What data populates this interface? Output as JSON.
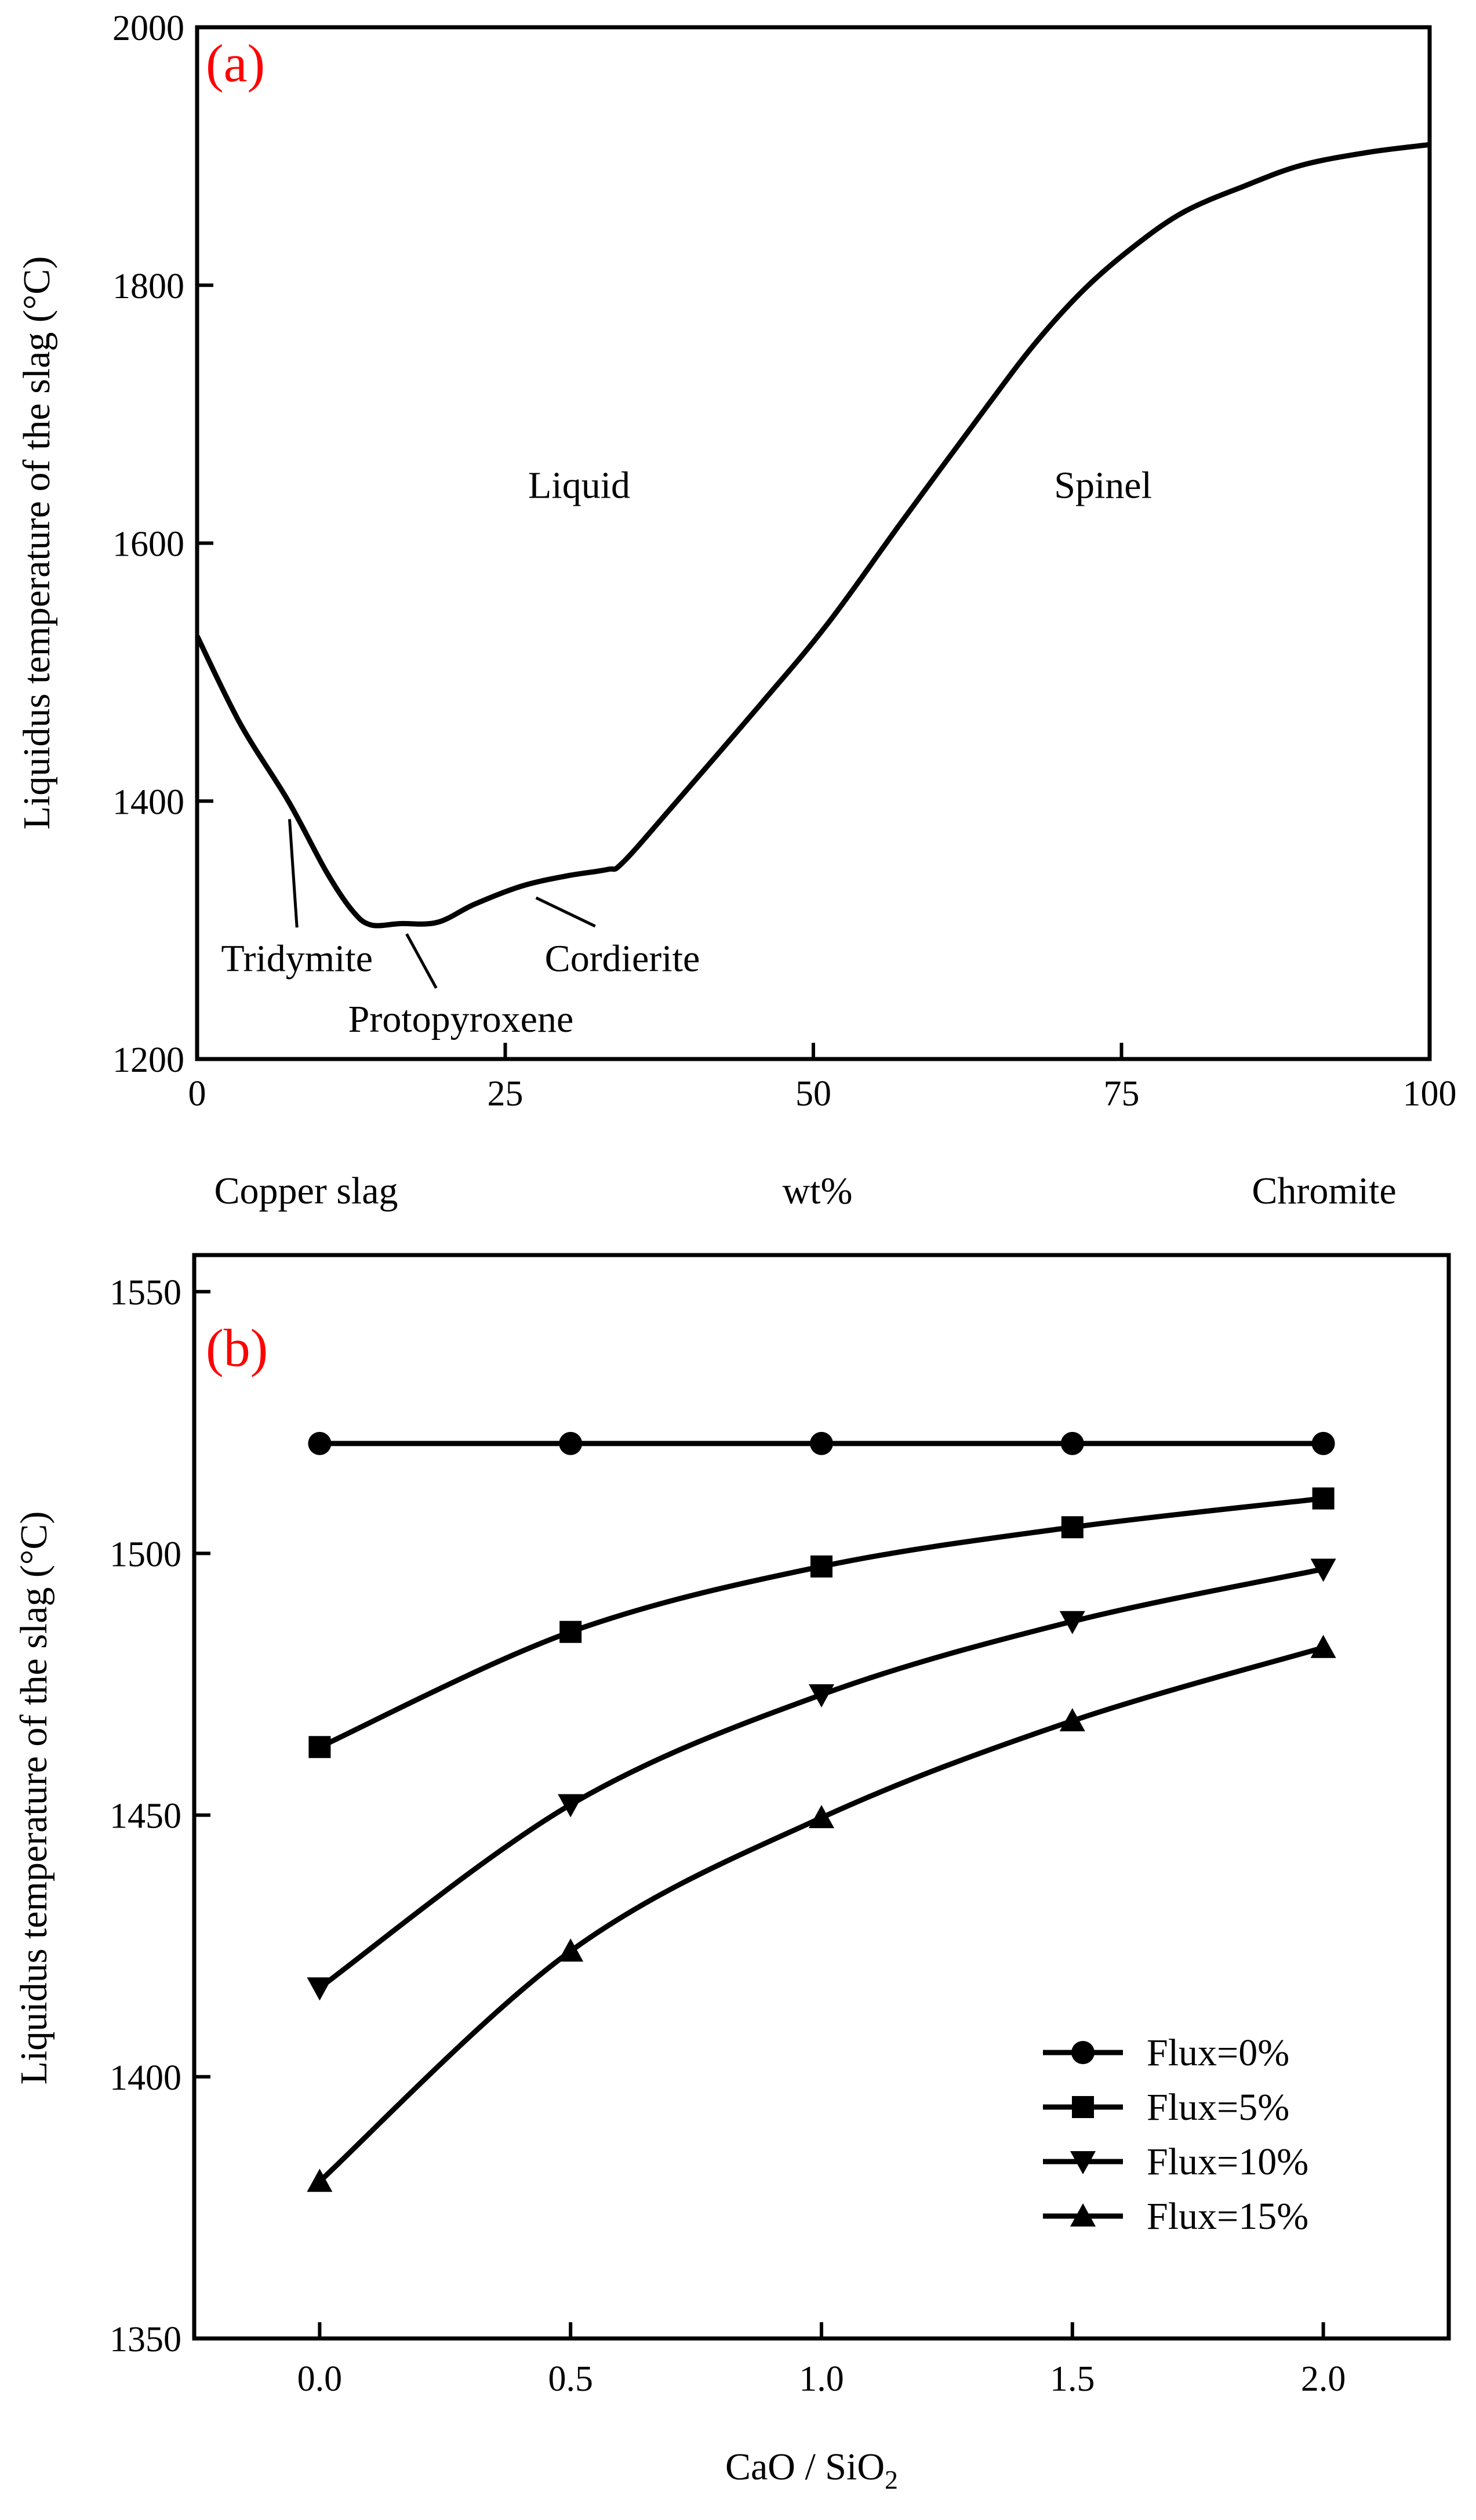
{
  "chart_data": [
    {
      "type": "line",
      "panel_label": "(a)",
      "panel_label_color": "#ff0000",
      "ylabel": "Liquidus temperature of the slag (°C)",
      "xlabel": "wt%",
      "x_end_labels": {
        "left": "Copper slag",
        "right": "Chromite"
      },
      "xlim": [
        0,
        100
      ],
      "ylim": [
        1200,
        2000
      ],
      "xticks": [
        0,
        25,
        50,
        75,
        100
      ],
      "yticks": [
        1200,
        1400,
        1600,
        1800,
        2000
      ],
      "grid": false,
      "series": [
        {
          "x": [
            0,
            3.5,
            7.4,
            10.5,
            12.6,
            14.1,
            16.5,
            19.5,
            22.5,
            26.3,
            30,
            33.3,
            34.5,
            38.4,
            45.8,
            51.2,
            57.2,
            64,
            68,
            72,
            76,
            80.1,
            85,
            89.6,
            95,
            100
          ],
          "y": [
            1528,
            1460,
            1400,
            1345,
            1315,
            1304,
            1305,
            1306,
            1320,
            1334,
            1342,
            1347,
            1352,
            1394,
            1476,
            1538,
            1617,
            1705,
            1755,
            1797,
            1830,
            1857,
            1877,
            1893,
            1903,
            1909
          ]
        }
      ],
      "annotations": [
        {
          "text": "Liquid",
          "x": 31,
          "y": 1645
        },
        {
          "text": "Spinel",
          "x": 73.5,
          "y": 1645
        },
        {
          "text": "Tridymite",
          "x": 8.1,
          "y": 1278,
          "leader": [
            [
              7.5,
              1386
            ],
            [
              8.1,
              1302
            ]
          ]
        },
        {
          "text": "Protopyroxene",
          "x": 21.4,
          "y": 1231,
          "leader": [
            [
              17,
              1297
            ],
            [
              19.4,
              1255
            ]
          ]
        },
        {
          "text": "Cordierite",
          "x": 34.5,
          "y": 1278,
          "leader": [
            [
              27.5,
              1325
            ],
            [
              32.3,
              1303
            ]
          ]
        }
      ]
    },
    {
      "type": "line",
      "panel_label": "(b)",
      "panel_label_color": "#ff0000",
      "ylabel": "Liquidus temperature of the slag (°C)",
      "xlabel": "CaO / SiO",
      "xlabel_subscript": "2",
      "xlim": [
        -0.25,
        2.25
      ],
      "ylim": [
        1350,
        1557
      ],
      "xticks": [
        "0.0",
        "0.5",
        "1.0",
        "1.5",
        "2.0"
      ],
      "yticks": [
        1350,
        1400,
        1450,
        1500,
        1550
      ],
      "grid": false,
      "legend_position": "bottom-right",
      "x": [
        0,
        0.5,
        1.0,
        1.5,
        2.0
      ],
      "series": [
        {
          "name": "Flux=0%",
          "marker": "circle",
          "values": [
            1521,
            1521,
            1521,
            1521,
            1521
          ]
        },
        {
          "name": "Flux=5%",
          "marker": "square",
          "values": [
            1463,
            1485,
            1497.5,
            1505,
            1510.5
          ]
        },
        {
          "name": "Flux=10%",
          "marker": "triangle-down",
          "values": [
            1417,
            1452,
            1473,
            1487,
            1497
          ]
        },
        {
          "name": "Flux=15%",
          "marker": "triangle-up",
          "values": [
            1380,
            1424,
            1449.5,
            1468,
            1482
          ]
        }
      ]
    }
  ]
}
